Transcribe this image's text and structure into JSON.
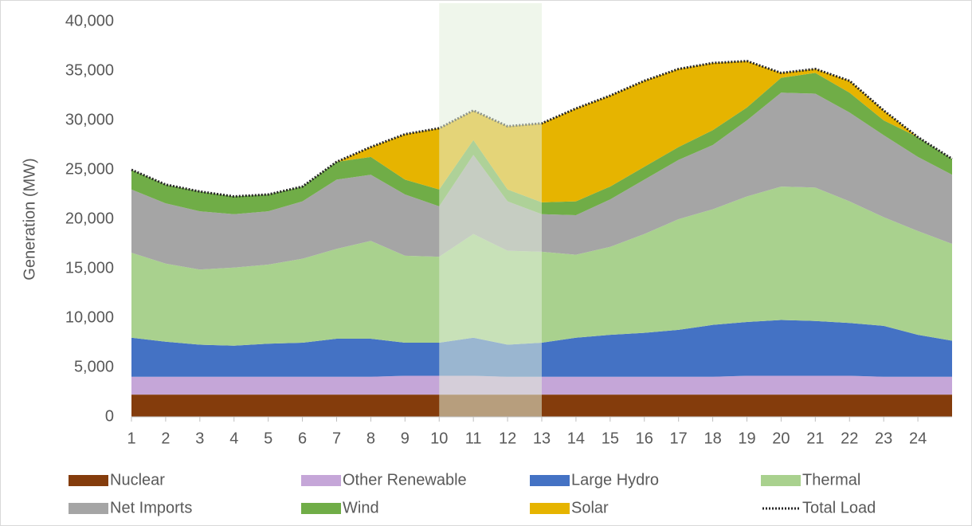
{
  "chart_data": {
    "type": "stacked_area",
    "y_label": "Generation (MW)",
    "x": [
      1,
      2,
      3,
      4,
      5,
      6,
      7,
      8,
      9,
      10,
      11,
      12,
      13,
      14,
      15,
      16,
      17,
      18,
      19,
      20,
      21,
      22,
      23,
      24,
      25
    ],
    "xlim": [
      1,
      25
    ],
    "xticks": [
      1,
      2,
      3,
      4,
      5,
      6,
      7,
      8,
      9,
      10,
      11,
      12,
      13,
      14,
      15,
      16,
      17,
      18,
      19,
      20,
      21,
      22,
      23,
      24
    ],
    "ylim": [
      0,
      40000
    ],
    "yticks": [
      0,
      {
        "value": 5000,
        "label": "5,000"
      },
      {
        "value": 10000,
        "label": "10,000"
      },
      {
        "value": 15000,
        "label": "15,000"
      },
      {
        "value": 20000,
        "label": "20,000"
      },
      {
        "value": 25000,
        "label": "25,000"
      },
      {
        "value": 30000,
        "label": "30,000"
      },
      {
        "value": 35000,
        "label": "35,000"
      },
      {
        "value": 40000,
        "label": "40,000"
      }
    ],
    "highlight": [
      10,
      13
    ],
    "highlight_color": "#e2efda",
    "series": [
      {
        "name": "Nuclear",
        "color": "#843c0c",
        "values": [
          2250,
          2250,
          2250,
          2250,
          2250,
          2250,
          2250,
          2250,
          2250,
          2250,
          2250,
          2250,
          2250,
          2250,
          2250,
          2250,
          2250,
          2250,
          2250,
          2250,
          2250,
          2250,
          2250,
          2250,
          2250
        ]
      },
      {
        "name": "Other Renewable",
        "color": "#c5a6d8",
        "values": [
          1800,
          1800,
          1800,
          1800,
          1800,
          1800,
          1800,
          1800,
          1900,
          1900,
          1900,
          1800,
          1800,
          1800,
          1800,
          1800,
          1800,
          1800,
          1900,
          1900,
          1900,
          1900,
          1800,
          1800,
          1800
        ]
      },
      {
        "name": "Large Hydro",
        "color": "#4472c4",
        "values": [
          3950,
          3550,
          3250,
          3150,
          3350,
          3450,
          3850,
          3850,
          3350,
          3350,
          3850,
          3250,
          3450,
          3950,
          4250,
          4450,
          4750,
          5250,
          5450,
          5650,
          5550,
          5350,
          5150,
          4250,
          3650
        ]
      },
      {
        "name": "Thermal",
        "color": "#a9d18e",
        "values": [
          8600,
          7900,
          7600,
          7900,
          8000,
          8500,
          9100,
          9900,
          8800,
          8700,
          10500,
          9500,
          9200,
          8400,
          8900,
          10000,
          11200,
          11700,
          12700,
          13500,
          13500,
          12300,
          11000,
          10500,
          9800
        ]
      },
      {
        "name": "Net Imports",
        "color": "#a5a5a5",
        "values": [
          6400,
          6100,
          5900,
          5400,
          5400,
          5800,
          7000,
          6700,
          6200,
          5100,
          8000,
          5000,
          3800,
          4000,
          4800,
          5500,
          6000,
          6500,
          7700,
          9500,
          9500,
          9000,
          8300,
          7500,
          7000
        ]
      },
      {
        "name": "Wind",
        "color": "#70ad47",
        "values": [
          2000,
          1900,
          2000,
          1800,
          1700,
          1500,
          1800,
          1800,
          1500,
          1700,
          1500,
          1200,
          1200,
          1400,
          1300,
          1300,
          1300,
          1500,
          1300,
          1500,
          2100,
          2000,
          1500,
          2000,
          1600
        ]
      },
      {
        "name": "Solar",
        "color": "#e6b400",
        "values": [
          0,
          0,
          0,
          0,
          0,
          0,
          0,
          1000,
          4600,
          6200,
          3000,
          6400,
          8000,
          9400,
          9200,
          8700,
          7900,
          6800,
          4700,
          500,
          400,
          1200,
          1000,
          0,
          0
        ]
      },
      {
        "name": "Total Load",
        "color": "#262626",
        "type": "line",
        "style": "dotted",
        "values": [
          25000,
          23500,
          22800,
          22300,
          22500,
          23300,
          25800,
          27300,
          28600,
          29200,
          31000,
          29400,
          29700,
          31200,
          32500,
          34000,
          35200,
          35800,
          36000,
          34800,
          35200,
          34000,
          31000,
          28300,
          26100
        ]
      }
    ]
  }
}
